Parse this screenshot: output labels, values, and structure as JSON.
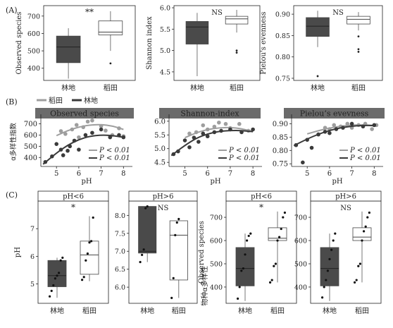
{
  "panel_labels": [
    "(A)",
    "(B)",
    "(C)"
  ],
  "legend": {
    "items": [
      {
        "label": "稻田",
        "color": "#9e9e9e"
      },
      {
        "label": "林地",
        "color": "#3a3a3a"
      }
    ]
  },
  "colors": {
    "forest": "#4a4a4a",
    "paddy": "#ffffff",
    "forest_pts": "#3a3a3a",
    "paddy_pts": "#9e9e9e",
    "strip": "#6b6b6b"
  },
  "group_labels": [
    "林地",
    "稻田"
  ],
  "chart_data": [
    {
      "id": "A1",
      "type": "box",
      "ylabel": "Observed species",
      "ylim": [
        330,
        760
      ],
      "yticks": [
        400,
        500,
        600,
        700
      ],
      "significance": "**",
      "groups": [
        {
          "label": "林地",
          "whisker_low": 340,
          "q1": 432,
          "median": 522,
          "q3": 585,
          "whisker_high": 630,
          "outliers": []
        },
        {
          "label": "稻田",
          "whisker_low": 500,
          "q1": 592,
          "median": 608,
          "q3": 672,
          "whisker_high": 728,
          "outliers": [
            428
          ]
        }
      ]
    },
    {
      "id": "A2",
      "type": "box",
      "ylabel": "Shannon index",
      "ylim": [
        4.3,
        6.05
      ],
      "yticks": [
        4.5,
        5.0,
        5.5,
        6.0
      ],
      "significance": "NS",
      "groups": [
        {
          "label": "林地",
          "whisker_low": 4.4,
          "q1": 5.15,
          "median": 5.55,
          "q3": 5.68,
          "whisker_high": 5.88,
          "outliers": []
        },
        {
          "label": "稻田",
          "whisker_low": 5.42,
          "q1": 5.62,
          "median": 5.74,
          "q3": 5.8,
          "whisker_high": 5.95,
          "outliers": [
            5.0,
            4.95
          ]
        }
      ]
    },
    {
      "id": "A3",
      "type": "box",
      "ylabel": "Pielou's evenness",
      "ylim": [
        0.745,
        0.92
      ],
      "yticks": [
        0.75,
        0.8,
        0.85,
        0.9
      ],
      "significance": "NS",
      "groups": [
        {
          "label": "林地",
          "whisker_low": 0.823,
          "q1": 0.848,
          "median": 0.872,
          "q3": 0.892,
          "whisker_high": 0.908,
          "outliers": [
            0.755
          ]
        },
        {
          "label": "稻田",
          "whisker_low": 0.862,
          "q1": 0.877,
          "median": 0.888,
          "q3": 0.895,
          "whisker_high": 0.905,
          "outliers": [
            0.848,
            0.818,
            0.812
          ]
        }
      ]
    },
    {
      "id": "B1",
      "type": "scatter",
      "title": "Observed species",
      "xlabel": "pH",
      "ylabel": "α多样性指数",
      "xlim": [
        4.3,
        8.4
      ],
      "xticks": [
        5,
        6,
        7,
        8
      ],
      "ylim": [
        320,
        760
      ],
      "yticks": [
        300,
        400,
        500,
        600,
        700
      ],
      "p_labels": [
        "P < 0.01",
        "P < 0.01"
      ],
      "series": [
        {
          "name": "稻田",
          "points": [
            [
              5.2,
              635
            ],
            [
              5.4,
              610
            ],
            [
              5.7,
              650
            ],
            [
              5.9,
              690
            ],
            [
              6.0,
              580
            ],
            [
              6.2,
              670
            ],
            [
              6.4,
              720
            ],
            [
              6.6,
              730
            ],
            [
              7.0,
              680
            ],
            [
              7.2,
              640
            ],
            [
              7.5,
              600
            ],
            [
              7.8,
              660
            ],
            [
              8.0,
              590
            ]
          ],
          "curve": [
            [
              5.0,
              595
            ],
            [
              5.5,
              640
            ],
            [
              6.0,
              672
            ],
            [
              6.5,
              690
            ],
            [
              7.0,
              694
            ],
            [
              7.5,
              682
            ],
            [
              8.0,
              650
            ]
          ]
        },
        {
          "name": "林地",
          "points": [
            [
              4.5,
              360
            ],
            [
              4.8,
              410
            ],
            [
              5.0,
              520
            ],
            [
              5.2,
              470
            ],
            [
              5.3,
              420
            ],
            [
              5.5,
              460
            ],
            [
              5.6,
              500
            ],
            [
              5.8,
              550
            ],
            [
              6.0,
              470
            ],
            [
              6.3,
              600
            ],
            [
              6.6,
              620
            ],
            [
              7.0,
              650
            ],
            [
              7.4,
              580
            ],
            [
              7.8,
              600
            ],
            [
              8.0,
              580
            ]
          ],
          "curve": [
            [
              4.4,
              340
            ],
            [
              5.0,
              440
            ],
            [
              5.5,
              510
            ],
            [
              6.0,
              560
            ],
            [
              6.5,
              590
            ],
            [
              7.0,
              600
            ],
            [
              7.5,
              596
            ],
            [
              8.0,
              580
            ]
          ]
        }
      ]
    },
    {
      "id": "B2",
      "type": "scatter",
      "title": "Shannon-index",
      "xlabel": "pH",
      "ylabel": "",
      "xlim": [
        4.3,
        8.4
      ],
      "xticks": [
        5,
        6,
        7,
        8
      ],
      "ylim": [
        4.35,
        6.15
      ],
      "yticks": [
        4.5,
        5.0,
        5.5,
        6.0
      ],
      "p_labels": [
        "P < 0.01",
        "P < 0.01"
      ],
      "series": [
        {
          "name": "稻田",
          "points": [
            [
              5.2,
              5.55
            ],
            [
              5.5,
              5.6
            ],
            [
              5.8,
              5.85
            ],
            [
              6.0,
              5.7
            ],
            [
              6.3,
              5.8
            ],
            [
              6.5,
              5.95
            ],
            [
              6.8,
              5.9
            ],
            [
              7.0,
              5.75
            ],
            [
              7.4,
              5.9
            ],
            [
              7.8,
              5.65
            ]
          ],
          "curve": [
            [
              5.0,
              5.4
            ],
            [
              5.5,
              5.58
            ],
            [
              6.0,
              5.7
            ],
            [
              6.5,
              5.76
            ],
            [
              7.0,
              5.77
            ],
            [
              7.5,
              5.73
            ],
            [
              8.0,
              5.62
            ]
          ]
        },
        {
          "name": "林地",
          "points": [
            [
              4.5,
              4.8
            ],
            [
              4.7,
              4.9
            ],
            [
              5.0,
              5.3
            ],
            [
              5.2,
              5.05
            ],
            [
              5.4,
              5.4
            ],
            [
              5.6,
              5.25
            ],
            [
              5.8,
              5.55
            ],
            [
              6.0,
              5.45
            ],
            [
              6.3,
              5.6
            ],
            [
              6.6,
              5.65
            ],
            [
              7.0,
              5.7
            ],
            [
              7.5,
              5.6
            ],
            [
              8.0,
              5.7
            ]
          ],
          "curve": [
            [
              4.4,
              4.75
            ],
            [
              5.0,
              5.12
            ],
            [
              5.5,
              5.38
            ],
            [
              6.0,
              5.54
            ],
            [
              6.5,
              5.63
            ],
            [
              7.0,
              5.66
            ],
            [
              7.5,
              5.66
            ],
            [
              8.0,
              5.62
            ]
          ]
        }
      ]
    },
    {
      "id": "B3",
      "type": "scatter",
      "title": "Pielou’s evevness",
      "xlabel": "pH",
      "ylabel": "",
      "xlim": [
        4.3,
        8.4
      ],
      "xticks": [
        5,
        6,
        7,
        8
      ],
      "ylim": [
        0.74,
        0.925
      ],
      "yticks": [
        0.75,
        0.8,
        0.85,
        0.9
      ],
      "p_labels": [
        "P < 0.01",
        "P < 0.01"
      ],
      "series": [
        {
          "name": "稻田",
          "points": [
            [
              5.5,
              0.86
            ],
            [
              5.8,
              0.885
            ],
            [
              6.0,
              0.88
            ],
            [
              6.2,
              0.895
            ],
            [
              6.5,
              0.89
            ],
            [
              6.8,
              0.9
            ],
            [
              7.0,
              0.885
            ],
            [
              7.3,
              0.895
            ],
            [
              7.6,
              0.9
            ],
            [
              7.9,
              0.88
            ],
            [
              8.1,
              0.895
            ]
          ],
          "curve": [
            [
              5.0,
              0.862
            ],
            [
              5.5,
              0.874
            ],
            [
              6.0,
              0.884
            ],
            [
              6.5,
              0.891
            ],
            [
              7.0,
              0.895
            ],
            [
              7.5,
              0.896
            ],
            [
              8.0,
              0.894
            ]
          ]
        },
        {
          "name": "林地",
          "points": [
            [
              4.5,
              0.82
            ],
            [
              4.8,
              0.755
            ],
            [
              5.0,
              0.84
            ],
            [
              5.2,
              0.81
            ],
            [
              5.5,
              0.86
            ],
            [
              5.8,
              0.87
            ],
            [
              6.0,
              0.865
            ],
            [
              6.3,
              0.88
            ],
            [
              6.6,
              0.885
            ],
            [
              7.0,
              0.9
            ],
            [
              7.5,
              0.89
            ],
            [
              8.0,
              0.895
            ]
          ],
          "curve": [
            [
              4.4,
              0.818
            ],
            [
              5.0,
              0.843
            ],
            [
              5.5,
              0.861
            ],
            [
              6.0,
              0.875
            ],
            [
              6.5,
              0.885
            ],
            [
              7.0,
              0.891
            ],
            [
              7.5,
              0.894
            ],
            [
              8.0,
              0.893
            ]
          ]
        }
      ]
    },
    {
      "id": "C1",
      "type": "box",
      "strip": "pH<6",
      "ylabel": "pH",
      "ylim": [
        4.3,
        8.0
      ],
      "yticks": [
        5,
        6,
        7
      ],
      "significance": "*",
      "show_points": true,
      "groups": [
        {
          "label": "林地",
          "whisker_low": 4.5,
          "q1": 4.9,
          "median": 5.3,
          "q3": 5.85,
          "whisker_high": 5.95,
          "outliers": [],
          "points": [
            4.55,
            4.75,
            4.95,
            5.2,
            5.3,
            5.4,
            5.85,
            5.95
          ]
        },
        {
          "label": "稻田",
          "whisker_low": 5.1,
          "q1": 5.35,
          "median": 6.05,
          "q3": 6.55,
          "whisker_high": 7.45,
          "outliers": [],
          "points": [
            5.15,
            5.25,
            5.85,
            6.1,
            6.5,
            6.55,
            7.4
          ]
        }
      ]
    },
    {
      "id": "C2",
      "type": "box",
      "strip": "pH>6",
      "ylabel": "",
      "ylim": [
        5.55,
        8.4
      ],
      "yticks": [
        6.0,
        6.5,
        7.0,
        7.5,
        8.0
      ],
      "significance": "NS",
      "show_points": true,
      "groups": [
        {
          "label": "林地",
          "whisker_low": 6.7,
          "q1": 6.95,
          "median": 7.0,
          "q3": 8.25,
          "whisker_high": 8.25,
          "outliers": [],
          "points": [
            6.7,
            6.9,
            7.05,
            8.2,
            8.25
          ]
        },
        {
          "label": "稻田",
          "whisker_low": 5.7,
          "q1": 6.2,
          "median": 7.45,
          "q3": 7.85,
          "whisker_high": 7.9,
          "outliers": [],
          "points": [
            5.7,
            6.25,
            7.45,
            7.8,
            7.9
          ]
        }
      ]
    },
    {
      "id": "C3",
      "type": "box",
      "strip": "pH<6",
      "ylabel": "Observed species",
      "ylabel2": "物种α多样性",
      "ylim": [
        330,
        770
      ],
      "yticks": [
        400,
        500,
        600,
        700
      ],
      "significance": "*",
      "show_points": true,
      "groups": [
        {
          "label": "林地",
          "whisker_low": 340,
          "q1": 405,
          "median": 480,
          "q3": 570,
          "whisker_high": 630,
          "outliers": [],
          "points": [
            350,
            400,
            470,
            480,
            540,
            600,
            620,
            630
          ]
        },
        {
          "label": "稻田",
          "whisker_low": 420,
          "q1": 600,
          "median": 610,
          "q3": 655,
          "whisker_high": 725,
          "outliers": [],
          "points": [
            420,
            430,
            490,
            500,
            600,
            615,
            650,
            700,
            720
          ]
        }
      ]
    },
    {
      "id": "C4",
      "type": "box",
      "strip": "pH>6",
      "ylabel": "",
      "ylim": [
        330,
        770
      ],
      "yticks": [
        400,
        500,
        600,
        700
      ],
      "significance": "NS",
      "show_points": true,
      "groups": [
        {
          "label": "林地",
          "whisker_low": 340,
          "q1": 405,
          "median": 480,
          "q3": 570,
          "whisker_high": 630,
          "outliers": [],
          "points": [
            355,
            400,
            430,
            470,
            520,
            560,
            600,
            630
          ]
        },
        {
          "label": "稻田",
          "whisker_low": 420,
          "q1": 600,
          "median": 615,
          "q3": 655,
          "whisker_high": 725,
          "outliers": [],
          "points": [
            420,
            430,
            490,
            500,
            600,
            640,
            660,
            700,
            720
          ]
        }
      ]
    }
  ]
}
